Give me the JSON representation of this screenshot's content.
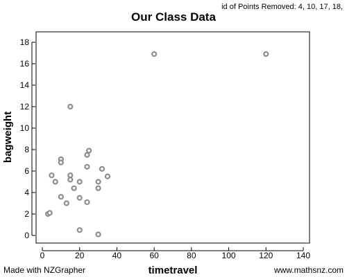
{
  "chart_data": {
    "type": "scatter",
    "title": "Our Class Data",
    "xlabel": "timetravel",
    "ylabel": "bagweight",
    "xlim": [
      0,
      140
    ],
    "ylim": [
      0,
      18
    ],
    "xticks": [
      0,
      20,
      40,
      60,
      80,
      100,
      120,
      140
    ],
    "yticks": [
      0,
      2,
      4,
      6,
      8,
      10,
      12,
      14,
      16,
      18
    ],
    "grid": false,
    "point_color": "#8c8c8c",
    "points": [
      {
        "x": 60,
        "y": 16.9
      },
      {
        "x": 120,
        "y": 16.9
      },
      {
        "x": 15,
        "y": 12
      },
      {
        "x": 25,
        "y": 7.9
      },
      {
        "x": 24,
        "y": 7.5
      },
      {
        "x": 10,
        "y": 7.1
      },
      {
        "x": 10,
        "y": 6.8
      },
      {
        "x": 24,
        "y": 6.4
      },
      {
        "x": 32,
        "y": 6.2
      },
      {
        "x": 5,
        "y": 5.6
      },
      {
        "x": 15,
        "y": 5.6
      },
      {
        "x": 35,
        "y": 5.5
      },
      {
        "x": 15,
        "y": 5.2
      },
      {
        "x": 7,
        "y": 5.0
      },
      {
        "x": 20,
        "y": 5.0
      },
      {
        "x": 30,
        "y": 5.0
      },
      {
        "x": 17,
        "y": 4.4
      },
      {
        "x": 30,
        "y": 4.4
      },
      {
        "x": 10,
        "y": 3.6
      },
      {
        "x": 20,
        "y": 3.5
      },
      {
        "x": 13,
        "y": 3.0
      },
      {
        "x": 24,
        "y": 3.1
      },
      {
        "x": 3,
        "y": 2.0
      },
      {
        "x": 4,
        "y": 2.1
      },
      {
        "x": 20,
        "y": 0.5
      },
      {
        "x": 30,
        "y": 0.1
      }
    ]
  },
  "note": "id of Points Removed: 4, 10, 17, 18,",
  "footer": {
    "left": "Made with NZGrapher",
    "right": "www.mathsnz.com"
  }
}
